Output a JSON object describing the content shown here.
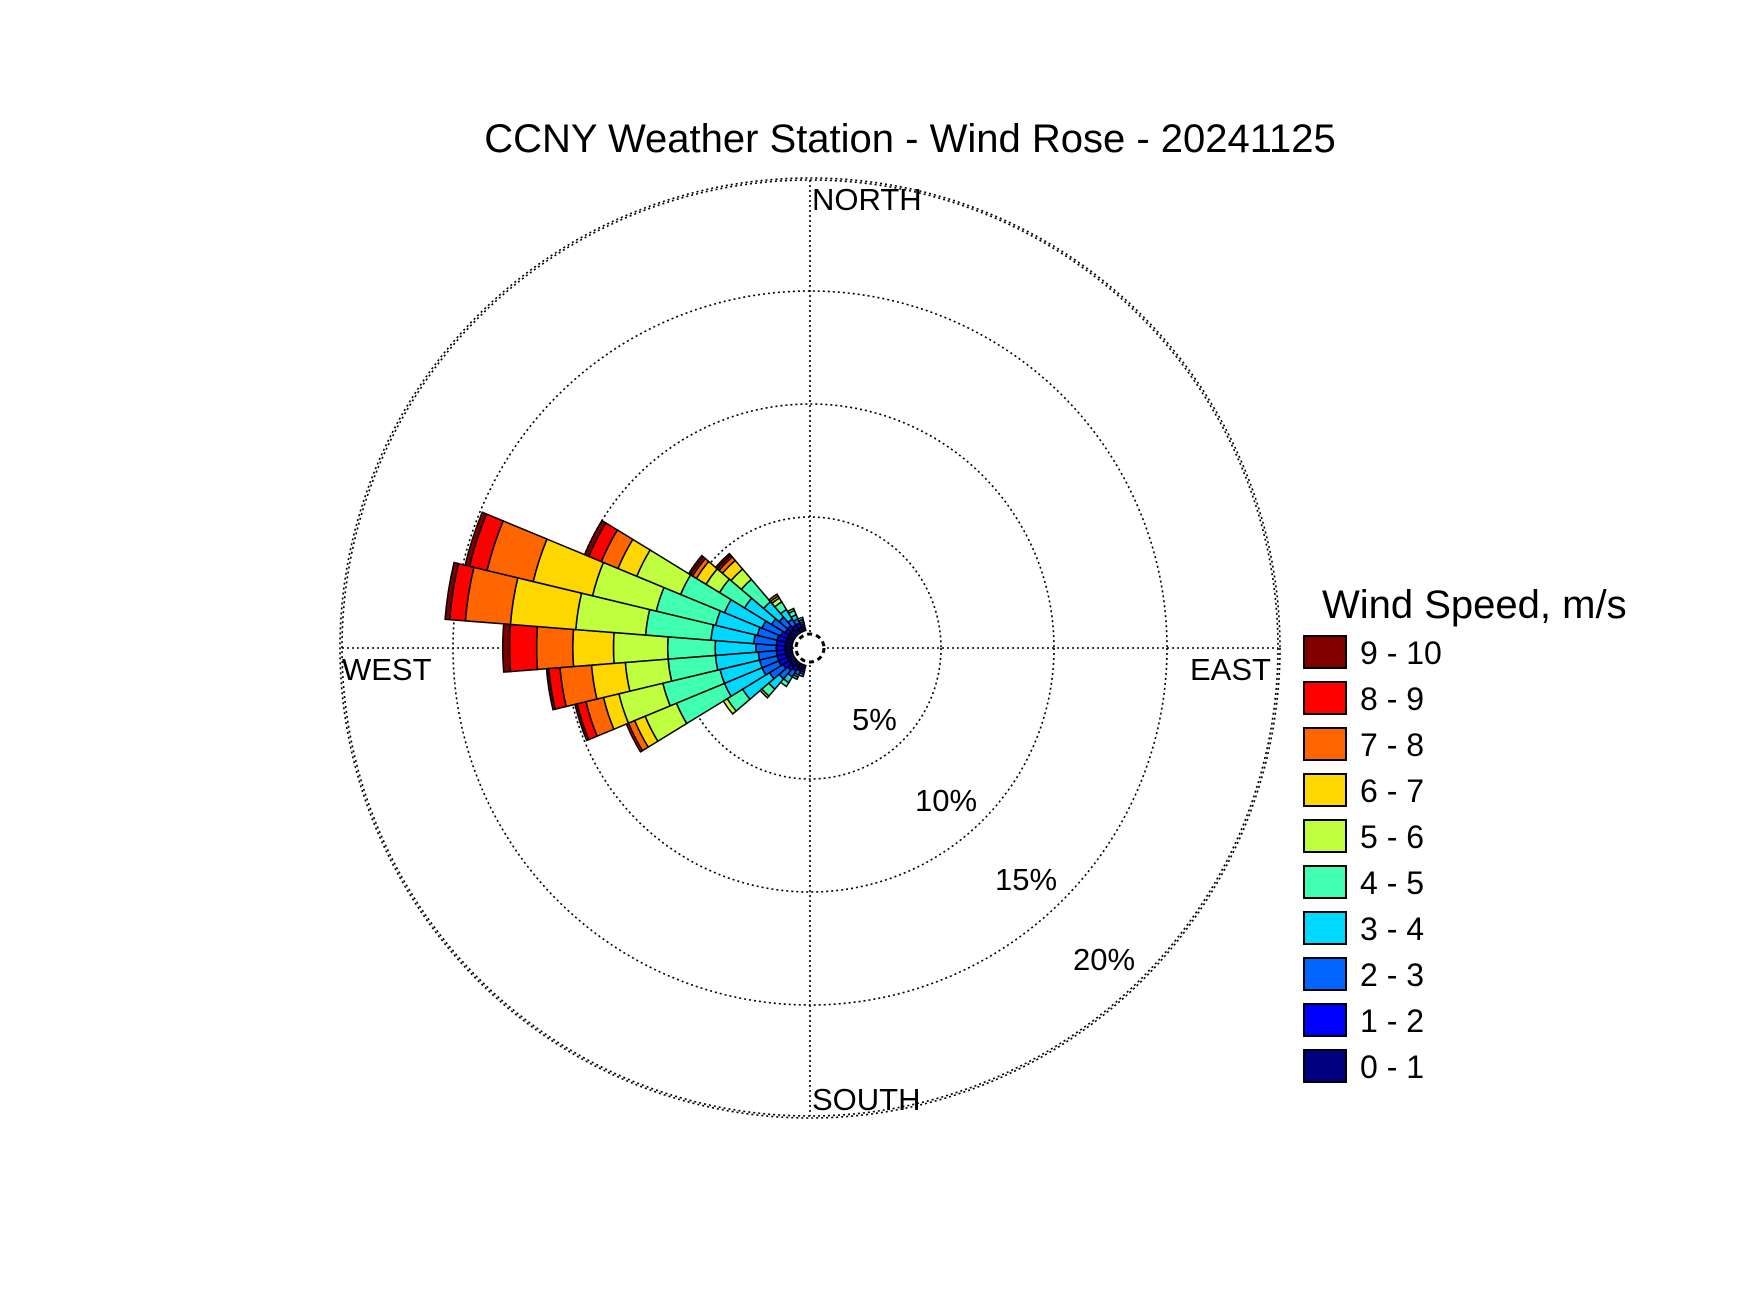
{
  "chart_data": {
    "type": "wind-rose",
    "title": "CCNY Weather Station - Wind Rose - 20241125",
    "directions": {
      "north": "NORTH",
      "south": "SOUTH",
      "east": "EAST",
      "west": "WEST"
    },
    "rings": [
      {
        "value": 5,
        "label": "5%"
      },
      {
        "value": 10,
        "label": "10%"
      },
      {
        "value": 15,
        "label": "15%"
      },
      {
        "value": 20,
        "label": "20%"
      }
    ],
    "radial_max": 20,
    "grid": true,
    "legend": {
      "title": "Wind Speed, m/s",
      "placement": "right",
      "bins": [
        {
          "label": "9 - 10",
          "color": "#800000"
        },
        {
          "label": "8 - 9",
          "color": "#ff0000"
        },
        {
          "label": "7 - 8",
          "color": "#ff6600"
        },
        {
          "label": "6 - 7",
          "color": "#ffd700"
        },
        {
          "label": "5 - 6",
          "color": "#bfff40"
        },
        {
          "label": "4 - 5",
          "color": "#40ffb0"
        },
        {
          "label": "3 - 4",
          "color": "#00d8ff"
        },
        {
          "label": "2 - 3",
          "color": "#0066ff"
        },
        {
          "label": "1 - 2",
          "color": "#0000ff"
        },
        {
          "label": "0 - 1",
          "color": "#000080"
        }
      ]
    },
    "sectors": [
      {
        "direction_deg": 270,
        "cumulative": [
          0.3,
          0.7,
          1.6,
          3.4,
          5.5,
          7.9,
          9.7,
          11.3,
          12.5,
          12.8
        ]
      },
      {
        "direction_deg": 279,
        "cumulative": [
          0.3,
          0.7,
          1.7,
          3.6,
          6.5,
          9.6,
          12.5,
          14.5,
          15.2,
          15.4
        ]
      },
      {
        "direction_deg": 288,
        "cumulative": [
          0.3,
          0.7,
          1.6,
          3.5,
          6.2,
          9.1,
          11.8,
          13.9,
          14.7,
          14.9
        ]
      },
      {
        "direction_deg": 297,
        "cumulative": [
          0.3,
          0.6,
          1.5,
          3.3,
          5.4,
          7.5,
          8.4,
          9.2,
          9.8,
          10.0
        ]
      },
      {
        "direction_deg": 306,
        "cumulative": [
          0.3,
          0.5,
          1.2,
          2.6,
          3.9,
          4.6,
          5.1,
          5.3,
          5.4,
          5.5
        ]
      },
      {
        "direction_deg": 315,
        "cumulative": [
          0.3,
          0.5,
          1.0,
          1.9,
          3.2,
          3.8,
          4.3,
          4.5,
          4.6,
          4.7
        ]
      },
      {
        "direction_deg": 324,
        "cumulative": [
          0.2,
          0.4,
          0.7,
          1.2,
          1.6,
          1.8,
          1.9,
          2.0,
          2.0,
          2.0
        ]
      },
      {
        "direction_deg": 333,
        "cumulative": [
          0.2,
          0.4,
          0.6,
          0.8,
          1.0,
          1.1,
          1.1,
          1.1,
          1.1,
          1.1
        ]
      },
      {
        "direction_deg": 342,
        "cumulative": [
          0.2,
          0.3,
          0.4,
          0.5,
          0.6,
          0.6,
          0.6,
          0.6,
          0.6,
          0.6
        ]
      },
      {
        "direction_deg": 261,
        "cumulative": [
          0.3,
          0.7,
          1.5,
          3.4,
          5.5,
          7.4,
          8.9,
          10.3,
          10.8,
          10.9
        ]
      },
      {
        "direction_deg": 252,
        "cumulative": [
          0.3,
          0.7,
          1.5,
          3.3,
          5.9,
          7.9,
          8.6,
          9.4,
          9.8,
          9.9
        ]
      },
      {
        "direction_deg": 243,
        "cumulative": [
          0.3,
          0.7,
          1.5,
          3.3,
          5.6,
          7.1,
          7.6,
          7.9,
          8.0,
          8.0
        ]
      },
      {
        "direction_deg": 234,
        "cumulative": [
          0.3,
          0.6,
          1.3,
          2.7,
          3.5,
          3.7,
          3.7,
          3.7,
          3.7,
          3.7
        ]
      },
      {
        "direction_deg": 225,
        "cumulative": [
          0.3,
          0.5,
          1.0,
          1.6,
          2.0,
          2.1,
          2.1,
          2.1,
          2.1,
          2.1
        ]
      },
      {
        "direction_deg": 216,
        "cumulative": [
          0.2,
          0.4,
          0.7,
          1.0,
          1.2,
          1.2,
          1.2,
          1.2,
          1.2,
          1.2
        ]
      },
      {
        "direction_deg": 207,
        "cumulative": [
          0.2,
          0.3,
          0.5,
          0.6,
          0.7,
          0.7,
          0.7,
          0.7,
          0.7,
          0.7
        ]
      },
      {
        "direction_deg": 198,
        "cumulative": [
          0.2,
          0.3,
          0.4,
          0.5,
          0.5,
          0.5,
          0.5,
          0.5,
          0.5,
          0.5
        ]
      }
    ]
  }
}
